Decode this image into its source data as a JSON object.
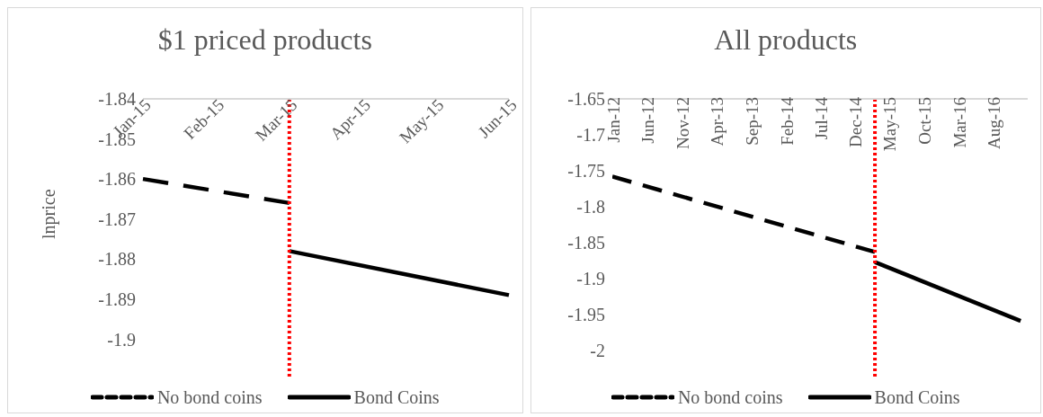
{
  "chart_data": [
    {
      "type": "line",
      "title": "$1 priced products",
      "ylabel": "lnprice",
      "categories": [
        "Jan-15",
        "Feb-15",
        "Mar-15",
        "Apr-15",
        "May-15",
        "Jun-15"
      ],
      "series": [
        {
          "name": "No bond coins",
          "color": "#000000",
          "line_style": "dashed",
          "values": [
            -1.86,
            null,
            -1.866,
            null,
            null,
            null
          ]
        },
        {
          "name": "Bond Coins",
          "color": "#000000",
          "line_style": "solid",
          "values": [
            null,
            null,
            -1.878,
            null,
            null,
            -1.889
          ]
        }
      ],
      "ylim": [
        -1.91,
        -1.84
      ],
      "yticks": [
        -1.84,
        -1.85,
        -1.86,
        -1.87,
        -1.88,
        -1.89,
        -1.9
      ],
      "grid": false,
      "legend": "bottom",
      "marker": "none",
      "ref_lines": [
        {
          "axis": "x",
          "value": "Mar-15",
          "color": "#ff0000",
          "line_style": "dotted"
        }
      ]
    },
    {
      "type": "line",
      "title": "All products",
      "series": [
        {
          "name": "No bond coins",
          "color": "#000000",
          "line_style": "dashed",
          "x": [
            "2012-01",
            "2015-03"
          ],
          "values": [
            -1.758,
            -1.863
          ]
        },
        {
          "name": "Bond Coins",
          "color": "#000000",
          "line_style": "solid",
          "x": [
            "2015-03",
            "2016-12"
          ],
          "values": [
            -1.877,
            -1.959
          ]
        }
      ],
      "xlim": [
        "2012-01",
        "2017-01"
      ],
      "xticks": [
        {
          "value": "2012-01",
          "label": "Jan-12"
        },
        {
          "value": "2012-06",
          "label": "Jun-12"
        },
        {
          "value": "2012-11",
          "label": "Nov-12"
        },
        {
          "value": "2013-04",
          "label": "Apr-13"
        },
        {
          "value": "2013-09",
          "label": "Sep-13"
        },
        {
          "value": "2014-02",
          "label": "Feb-14"
        },
        {
          "value": "2014-07",
          "label": "Jul-14"
        },
        {
          "value": "2014-12",
          "label": "Dec-14"
        },
        {
          "value": "2015-05",
          "label": "May-15"
        },
        {
          "value": "2015-10",
          "label": "Oct-15"
        },
        {
          "value": "2016-03",
          "label": "Mar-16"
        },
        {
          "value": "2016-08",
          "label": "Aug-16"
        }
      ],
      "ylim": [
        -2.04,
        -1.65
      ],
      "yticks": [
        -1.65,
        -1.7,
        -1.75,
        -1.8,
        -1.85,
        -1.9,
        -1.95,
        -2
      ],
      "grid": false,
      "legend": "bottom",
      "marker": "none",
      "ref_lines": [
        {
          "axis": "x",
          "value": "2015-03",
          "color": "#ff0000",
          "line_style": "dotted"
        }
      ]
    }
  ]
}
